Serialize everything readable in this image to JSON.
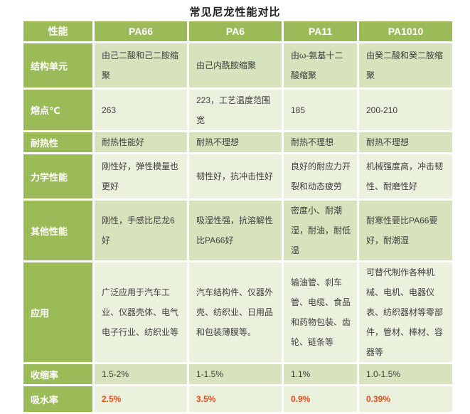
{
  "title": "常见尼龙性能对比",
  "colors": {
    "header_green": "#9bbb59",
    "band_dark": "#d6e3bc",
    "band_light": "#eaf1dd",
    "header_text": "#ffffff",
    "body_text": "#3f3f3f",
    "highlight_red": "#e8491d",
    "title_text": "#1f1f1f"
  },
  "table": {
    "columns": [
      "性能",
      "PA66",
      "PA6",
      "PA11",
      "PA1010"
    ],
    "rows": [
      {
        "label": "结构单元",
        "band": "dark",
        "highlight": false,
        "cells": [
          "由己二酸和己二胺缩聚",
          "由己内酰胺缩聚",
          "由ω-氨基十二酸缩聚",
          "由癸二酸和癸二胺缩聚"
        ]
      },
      {
        "label": "熔点℃",
        "band": "light",
        "highlight": false,
        "cells": [
          "263",
          "223，工艺温度范围宽",
          "185",
          "200-210"
        ]
      },
      {
        "label": "耐热性",
        "band": "dark",
        "highlight": false,
        "cells": [
          "耐热性能好",
          "耐热不理想",
          "耐热不理想",
          "耐热不理想"
        ]
      },
      {
        "label": "力学性能",
        "band": "light",
        "highlight": false,
        "cells": [
          "刚性好，弹性模量也更好",
          "韧性好，抗冲击性好",
          "良好的耐应力开裂和动态疲劳",
          "机械强度高，冲击韧性、耐磨性好"
        ]
      },
      {
        "label": "其他性能",
        "band": "dark",
        "highlight": false,
        "cells": [
          "刚性，手感比尼龙6好",
          "吸湿性强，抗溶解性比PA66好",
          "密度小、耐潮湿，耐油，耐低温",
          "耐寒性要比PA66要好，耐潮湿"
        ]
      },
      {
        "label": "应用",
        "band": "light",
        "highlight": false,
        "cells": [
          "广泛应用于汽车工业、仪器壳体、电气电子行业、纺织业等",
          "汽车结构件、仪器外壳、纺织业、日用品和包装薄膜等。",
          "输油管、刹车管、电缆、食品和药物包装、齿轮、链条等",
          "可替代制作各种机械、电机、电器仪表、纺织器材等零部件，管材、棒材、容器等"
        ]
      },
      {
        "label": "收缩率",
        "band": "dark",
        "highlight": false,
        "cells": [
          "1.5-2%",
          "1-1.5%",
          "1.1%",
          "1.0-1.5%"
        ]
      },
      {
        "label": "吸水率",
        "band": "light",
        "highlight": true,
        "cells": [
          "2.5%",
          "3.5%",
          "0.9%",
          "0.39%"
        ]
      }
    ]
  }
}
